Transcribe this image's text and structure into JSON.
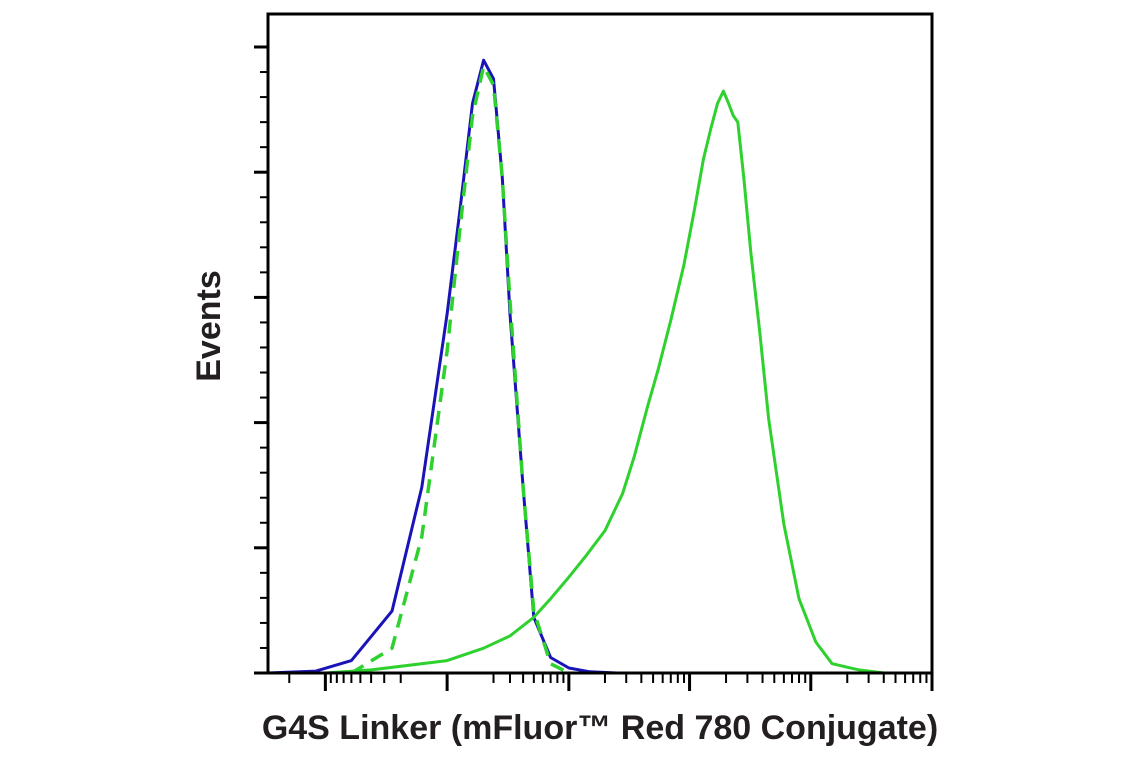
{
  "chart_data": {
    "type": "line",
    "title": "",
    "xlabel": "G4S Linker (mFluor™ Red 780 Conjugate)",
    "ylabel": "Events",
    "x_scale": "biexponential",
    "x_tick_labels": [],
    "y_tick_labels": [],
    "ylim": [
      0,
      100
    ],
    "grid": false,
    "legend": "none",
    "series": [
      {
        "color": "#1a14b8",
        "style": "solid",
        "x": [
          -3000,
          -1200,
          -600,
          -250,
          -100,
          0,
          50,
          100,
          150,
          200,
          250,
          300,
          400,
          500,
          700,
          1000,
          1500,
          2500,
          6000,
          100000,
          1000000
        ],
        "y": [
          0,
          0.3,
          2,
          10,
          30,
          58,
          75,
          92,
          99,
          96,
          80,
          58,
          30,
          9,
          2.5,
          0.8,
          0.2,
          0,
          0,
          0,
          0
        ]
      },
      {
        "color": "#2ed12e",
        "style": "dashed",
        "x": [
          -600,
          -250,
          -100,
          0,
          50,
          100,
          150,
          200,
          250,
          300,
          400,
          500,
          700,
          1000
        ],
        "y": [
          0,
          4,
          22,
          52,
          72,
          90,
          98,
          95,
          80,
          60,
          30,
          10,
          1.5,
          0
        ]
      },
      {
        "color": "#2ed12e",
        "style": "solid",
        "x": [
          -3000,
          -1000,
          -400,
          0,
          150,
          300,
          500,
          700,
          1000,
          1400,
          2000,
          2800,
          3500,
          4500,
          5500,
          7000,
          9000,
          11000,
          13000,
          15000,
          17000,
          19000,
          21000,
          23000,
          25000,
          28000,
          32000,
          38000,
          45000,
          60000,
          80000,
          110000,
          150000,
          250000,
          400000,
          800000,
          1000000
        ],
        "y": [
          0,
          0,
          0.5,
          2,
          4,
          6,
          9,
          12,
          15.5,
          19,
          23,
          29,
          35,
          43,
          49,
          57,
          66,
          75,
          83,
          88,
          92,
          94,
          92,
          90,
          89,
          80,
          68,
          55,
          41,
          24,
          12,
          5,
          1.5,
          0.5,
          0,
          0,
          0
        ]
      }
    ]
  }
}
